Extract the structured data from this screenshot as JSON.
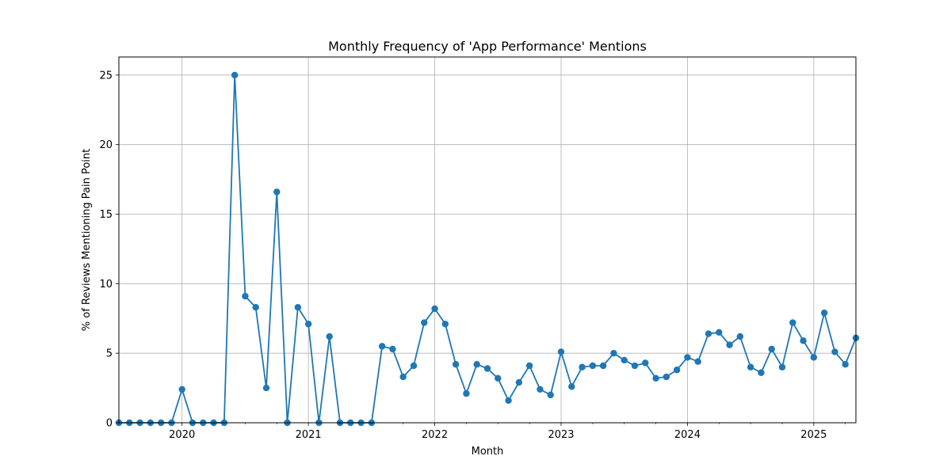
{
  "chart_data": {
    "type": "line",
    "title": "Monthly Frequency of 'App Performance' Mentions",
    "xlabel": "Month",
    "ylabel": "% of Reviews Mentioning Pain Point",
    "ylim": [
      0,
      26.3
    ],
    "xlim": [
      "2019-07",
      "2025-05"
    ],
    "grid": true,
    "series_color": "#1f77b4",
    "x_ticks": [
      "2020",
      "2021",
      "2022",
      "2023",
      "2024",
      "2025"
    ],
    "y_ticks": [
      "0",
      "5",
      "10",
      "15",
      "20",
      "25"
    ],
    "series": [
      {
        "x": [
          "2019-07",
          "2019-08",
          "2019-09",
          "2019-10",
          "2019-11",
          "2019-12",
          "2020-01",
          "2020-02",
          "2020-03",
          "2020-04",
          "2020-05",
          "2020-06",
          "2020-07",
          "2020-08",
          "2020-09",
          "2020-10",
          "2020-11",
          "2020-12",
          "2021-01",
          "2021-02",
          "2021-03",
          "2021-04",
          "2021-05",
          "2021-06",
          "2021-07",
          "2021-08",
          "2021-09",
          "2021-10",
          "2021-11",
          "2021-12",
          "2022-01",
          "2022-02",
          "2022-03",
          "2022-04",
          "2022-05",
          "2022-06",
          "2022-07",
          "2022-08",
          "2022-09",
          "2022-10",
          "2022-11",
          "2022-12",
          "2023-01",
          "2023-02",
          "2023-03",
          "2023-04",
          "2023-05",
          "2023-06",
          "2023-07",
          "2023-08",
          "2023-09",
          "2023-10",
          "2023-11",
          "2023-12",
          "2024-01",
          "2024-02",
          "2024-03",
          "2024-04",
          "2024-05",
          "2024-06",
          "2024-07",
          "2024-08",
          "2024-09",
          "2024-10",
          "2024-11",
          "2024-12",
          "2025-01",
          "2025-02",
          "2025-03",
          "2025-04",
          "2025-05"
        ],
        "values": [
          0,
          0,
          0,
          0,
          0,
          0,
          2.4,
          0,
          0,
          0,
          0,
          25.0,
          9.1,
          8.3,
          2.5,
          16.6,
          0,
          8.3,
          7.1,
          0,
          6.2,
          0,
          0,
          0,
          0,
          5.5,
          5.3,
          3.3,
          4.1,
          7.2,
          8.2,
          7.1,
          4.2,
          2.1,
          4.2,
          3.9,
          3.2,
          1.6,
          2.9,
          4.1,
          2.4,
          2.0,
          5.1,
          2.6,
          4.0,
          4.1,
          4.1,
          5.0,
          4.5,
          4.1,
          4.3,
          3.2,
          3.3,
          3.8,
          4.7,
          4.4,
          6.4,
          6.5,
          5.6,
          6.2,
          4.0,
          3.6,
          5.3,
          4.0,
          7.2,
          5.9,
          4.7,
          7.9,
          5.1,
          4.2,
          6.1
        ]
      }
    ]
  }
}
